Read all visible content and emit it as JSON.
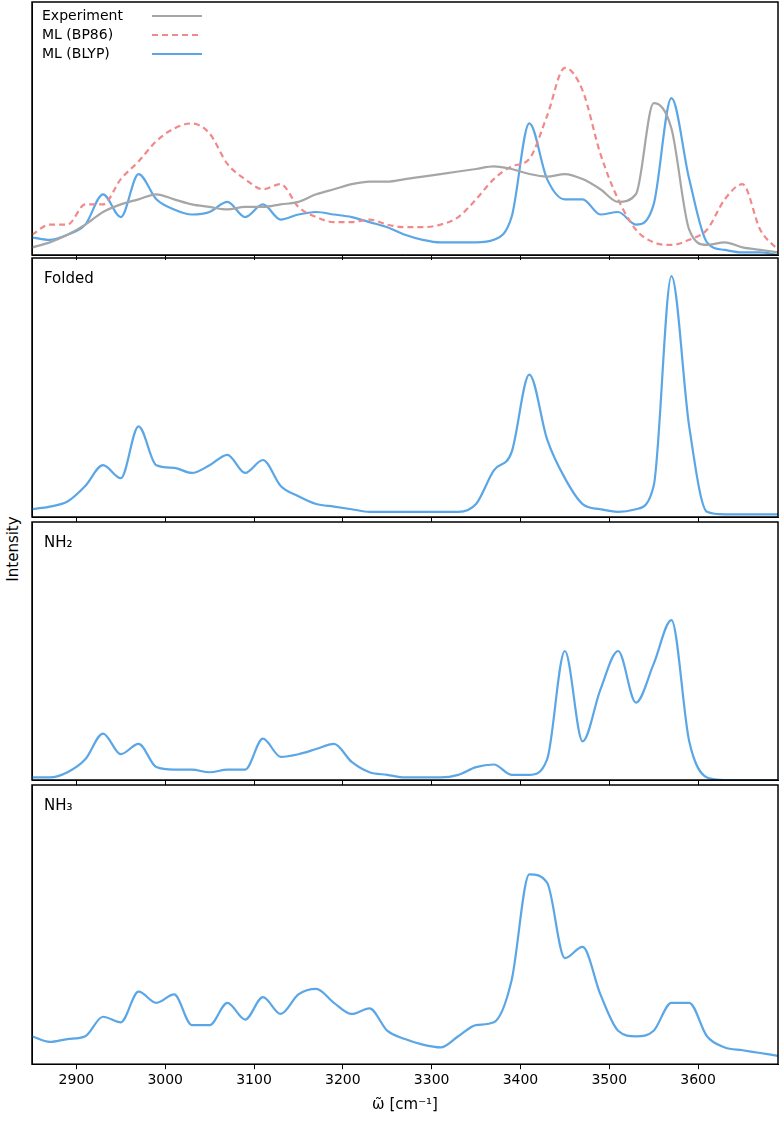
{
  "shared_ylabel": "Intensity",
  "chart_data": [
    {
      "type": "line",
      "legend": "upper left",
      "xlim": [
        2850,
        3690
      ],
      "xticks": [
        2900,
        3000,
        3100,
        3200,
        3300,
        3400,
        3500,
        3600
      ],
      "ylim": [
        0,
        1
      ],
      "tick_labels": false,
      "grid": false,
      "x": [
        2850,
        2870,
        2890,
        2910,
        2930,
        2950,
        2970,
        2990,
        3010,
        3030,
        3050,
        3070,
        3090,
        3110,
        3130,
        3150,
        3170,
        3190,
        3210,
        3230,
        3250,
        3270,
        3290,
        3310,
        3330,
        3350,
        3370,
        3390,
        3410,
        3430,
        3450,
        3470,
        3490,
        3510,
        3530,
        3550,
        3570,
        3590,
        3610,
        3630,
        3650,
        3670,
        3690
      ],
      "series": [
        {
          "name": "Experiment",
          "color": "#a6a6a6",
          "line_style": "solid",
          "marker": "none",
          "values": [
            0.03,
            0.05,
            0.08,
            0.12,
            0.17,
            0.2,
            0.22,
            0.24,
            0.22,
            0.2,
            0.19,
            0.18,
            0.19,
            0.19,
            0.2,
            0.21,
            0.24,
            0.26,
            0.28,
            0.29,
            0.29,
            0.3,
            0.31,
            0.32,
            0.33,
            0.34,
            0.35,
            0.34,
            0.32,
            0.31,
            0.32,
            0.3,
            0.26,
            0.21,
            0.24,
            0.6,
            0.5,
            0.1,
            0.04,
            0.05,
            0.03,
            0.02,
            0.01
          ]
        },
        {
          "name": "ML (BP86)",
          "color": "#f08a8a",
          "line_style": "dashed",
          "marker": "none",
          "values": [
            0.08,
            0.12,
            0.12,
            0.2,
            0.2,
            0.3,
            0.37,
            0.45,
            0.5,
            0.52,
            0.48,
            0.36,
            0.3,
            0.26,
            0.28,
            0.19,
            0.15,
            0.13,
            0.13,
            0.14,
            0.12,
            0.11,
            0.11,
            0.12,
            0.15,
            0.22,
            0.3,
            0.35,
            0.38,
            0.55,
            0.74,
            0.65,
            0.4,
            0.22,
            0.1,
            0.05,
            0.04,
            0.06,
            0.1,
            0.22,
            0.28,
            0.1,
            0.02
          ]
        },
        {
          "name": "ML (BLYP)",
          "color": "#5aa6e6",
          "line_style": "solid",
          "marker": "none",
          "values": [
            0.07,
            0.06,
            0.08,
            0.12,
            0.24,
            0.15,
            0.32,
            0.22,
            0.18,
            0.16,
            0.17,
            0.21,
            0.15,
            0.2,
            0.14,
            0.16,
            0.17,
            0.16,
            0.15,
            0.13,
            0.11,
            0.08,
            0.06,
            0.05,
            0.05,
            0.05,
            0.06,
            0.15,
            0.52,
            0.3,
            0.22,
            0.22,
            0.16,
            0.17,
            0.12,
            0.2,
            0.62,
            0.3,
            0.05,
            0.02,
            0.01,
            0.01,
            0.0
          ]
        }
      ]
    },
    {
      "type": "line",
      "title": "Folded",
      "xlim": [
        2850,
        3690
      ],
      "xticks": [
        2900,
        3000,
        3100,
        3200,
        3300,
        3400,
        3500,
        3600
      ],
      "ylim": [
        0,
        1
      ],
      "tick_labels": false,
      "grid": false,
      "x": [
        2850,
        2870,
        2890,
        2910,
        2930,
        2950,
        2970,
        2990,
        3010,
        3030,
        3050,
        3070,
        3090,
        3110,
        3130,
        3150,
        3170,
        3190,
        3210,
        3230,
        3250,
        3270,
        3290,
        3310,
        3330,
        3350,
        3370,
        3390,
        3410,
        3430,
        3450,
        3470,
        3490,
        3510,
        3530,
        3550,
        3570,
        3590,
        3610,
        3630,
        3650,
        3670,
        3690
      ],
      "series": [
        {
          "color": "#5aa6e6",
          "line_style": "solid",
          "marker": "none",
          "values": [
            0.03,
            0.04,
            0.06,
            0.12,
            0.2,
            0.15,
            0.35,
            0.2,
            0.19,
            0.17,
            0.2,
            0.24,
            0.17,
            0.22,
            0.12,
            0.08,
            0.05,
            0.04,
            0.03,
            0.02,
            0.02,
            0.02,
            0.02,
            0.02,
            0.02,
            0.05,
            0.18,
            0.25,
            0.55,
            0.3,
            0.15,
            0.05,
            0.03,
            0.02,
            0.03,
            0.12,
            0.93,
            0.35,
            0.02,
            0.01,
            0.01,
            0.01,
            0.01
          ]
        }
      ]
    },
    {
      "type": "line",
      "title": "NH₂",
      "xlim": [
        2850,
        3690
      ],
      "xticks": [
        2900,
        3000,
        3100,
        3200,
        3300,
        3400,
        3500,
        3600
      ],
      "ylim": [
        0,
        1
      ],
      "tick_labels": false,
      "grid": false,
      "x": [
        2850,
        2870,
        2890,
        2910,
        2930,
        2950,
        2970,
        2990,
        3010,
        3030,
        3050,
        3070,
        3090,
        3110,
        3130,
        3150,
        3170,
        3190,
        3210,
        3230,
        3250,
        3270,
        3290,
        3310,
        3330,
        3350,
        3370,
        3390,
        3410,
        3430,
        3450,
        3470,
        3490,
        3510,
        3530,
        3550,
        3570,
        3590,
        3610,
        3630,
        3650,
        3670,
        3690
      ],
      "series": [
        {
          "color": "#5aa6e6",
          "line_style": "solid",
          "marker": "none",
          "values": [
            0.01,
            0.01,
            0.03,
            0.08,
            0.18,
            0.1,
            0.14,
            0.05,
            0.04,
            0.04,
            0.03,
            0.04,
            0.04,
            0.16,
            0.09,
            0.1,
            0.12,
            0.14,
            0.07,
            0.03,
            0.02,
            0.01,
            0.01,
            0.01,
            0.02,
            0.05,
            0.06,
            0.02,
            0.02,
            0.08,
            0.5,
            0.15,
            0.35,
            0.5,
            0.3,
            0.45,
            0.62,
            0.15,
            0.01,
            0.0,
            0.0,
            0.0,
            0.0
          ]
        }
      ]
    },
    {
      "type": "line",
      "title": "NH₃",
      "xlabel": "ω̃ [cm⁻¹]",
      "xlim": [
        2850,
        3690
      ],
      "xticks": [
        2900,
        3000,
        3100,
        3200,
        3300,
        3400,
        3500,
        3600
      ],
      "ylim": [
        0,
        1
      ],
      "tick_labels": "x",
      "grid": false,
      "x": [
        2850,
        2870,
        2890,
        2910,
        2930,
        2950,
        2970,
        2990,
        3010,
        3030,
        3050,
        3070,
        3090,
        3110,
        3130,
        3150,
        3170,
        3190,
        3210,
        3230,
        3250,
        3270,
        3290,
        3310,
        3330,
        3350,
        3370,
        3390,
        3410,
        3430,
        3450,
        3470,
        3490,
        3510,
        3530,
        3550,
        3570,
        3590,
        3610,
        3630,
        3650,
        3670,
        3690
      ],
      "series": [
        {
          "color": "#5aa6e6",
          "line_style": "solid",
          "marker": "none",
          "values": [
            0.1,
            0.08,
            0.09,
            0.1,
            0.17,
            0.15,
            0.26,
            0.22,
            0.25,
            0.14,
            0.14,
            0.22,
            0.16,
            0.24,
            0.18,
            0.25,
            0.27,
            0.22,
            0.18,
            0.2,
            0.12,
            0.09,
            0.07,
            0.06,
            0.1,
            0.14,
            0.15,
            0.3,
            0.68,
            0.65,
            0.38,
            0.42,
            0.25,
            0.12,
            0.1,
            0.12,
            0.22,
            0.22,
            0.1,
            0.06,
            0.05,
            0.04,
            0.03
          ]
        }
      ]
    }
  ]
}
